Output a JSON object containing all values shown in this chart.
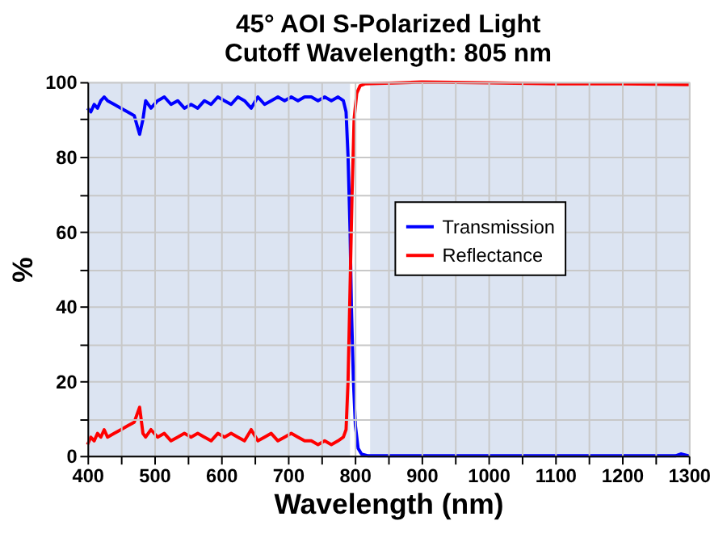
{
  "chart_data": {
    "type": "line",
    "title": "45° AOI S-Polarized Light",
    "subtitle": "Cutoff Wavelength: 805 nm",
    "xlabel": "Wavelength (nm)",
    "ylabel": "%",
    "xlim": [
      400,
      1300
    ],
    "ylim": [
      0,
      100
    ],
    "xticks": [
      400,
      {
        "value": 450,
        "label": null
      },
      500,
      {
        "value": 550,
        "label": null
      },
      600,
      {
        "value": 650,
        "label": null
      },
      700,
      {
        "value": 750,
        "label": null
      },
      800,
      {
        "value": 850,
        "label": null
      },
      900,
      {
        "value": 950,
        "label": null
      },
      1000,
      {
        "value": 1050,
        "label": null
      },
      1100,
      {
        "value": 1150,
        "label": null
      },
      1200,
      {
        "value": 1250,
        "label": null
      },
      1300
    ],
    "yticks": [
      0,
      {
        "value": 10,
        "label": null
      },
      20,
      {
        "value": 30,
        "label": null
      },
      40,
      {
        "value": 50,
        "label": null
      },
      60,
      {
        "value": 70,
        "label": null
      },
      80,
      {
        "value": 90,
        "label": null
      },
      100
    ],
    "grid": true,
    "legend": "right",
    "bands": [
      {
        "axis": "x",
        "from": 400,
        "to": 793,
        "color": "#dce4f2"
      },
      {
        "axis": "x",
        "from": 823,
        "to": 1300,
        "color": "#dce4f2"
      }
    ],
    "series": [
      {
        "name": "Transmission",
        "color": "#0000ff",
        "x": [
          400,
          405,
          410,
          415,
          420,
          425,
          430,
          440,
          450,
          460,
          470,
          478,
          483,
          487,
          495,
          505,
          515,
          525,
          535,
          545,
          555,
          565,
          575,
          585,
          595,
          605,
          615,
          625,
          635,
          645,
          655,
          665,
          675,
          685,
          695,
          705,
          715,
          725,
          735,
          745,
          755,
          765,
          775,
          783,
          787,
          790,
          793,
          795,
          798,
          801,
          805,
          810,
          820,
          900,
          1000,
          1100,
          1200,
          1280,
          1288,
          1300
        ],
        "values": [
          93,
          92,
          94,
          93,
          95,
          96,
          95,
          94,
          93,
          92,
          91,
          86,
          90,
          95,
          93,
          95,
          96,
          94,
          95,
          93,
          94,
          93,
          95,
          94,
          96,
          95,
          94,
          96,
          95,
          93,
          96,
          94,
          95,
          96,
          95,
          96,
          95,
          96,
          96,
          95,
          96,
          95,
          96,
          95,
          92,
          80,
          60,
          40,
          20,
          8,
          2,
          0.5,
          0,
          0,
          0,
          0,
          0,
          0,
          0.5,
          0
        ]
      },
      {
        "name": "Reflectance",
        "color": "#ff0000",
        "x": [
          400,
          405,
          410,
          415,
          420,
          425,
          430,
          440,
          450,
          460,
          470,
          478,
          483,
          487,
          495,
          505,
          515,
          525,
          535,
          545,
          555,
          565,
          575,
          585,
          595,
          605,
          615,
          625,
          635,
          645,
          655,
          665,
          675,
          685,
          695,
          705,
          715,
          725,
          735,
          745,
          755,
          765,
          775,
          783,
          787,
          790,
          793,
          796,
          799,
          803,
          808,
          815,
          900,
          1000,
          1100,
          1200,
          1300
        ],
        "values": [
          3,
          5,
          4,
          6,
          5,
          7,
          5,
          6,
          7,
          8,
          9,
          13,
          6,
          5,
          7,
          5,
          6,
          4,
          5,
          6,
          5,
          6,
          5,
          4,
          6,
          5,
          6,
          5,
          4,
          7,
          4,
          5,
          6,
          4,
          5,
          6,
          5,
          4,
          4,
          3,
          4,
          3,
          4,
          5,
          7,
          20,
          45,
          70,
          90,
          97,
          99,
          99.5,
          100,
          99.8,
          99.5,
          99.5,
          99.3
        ]
      }
    ]
  }
}
